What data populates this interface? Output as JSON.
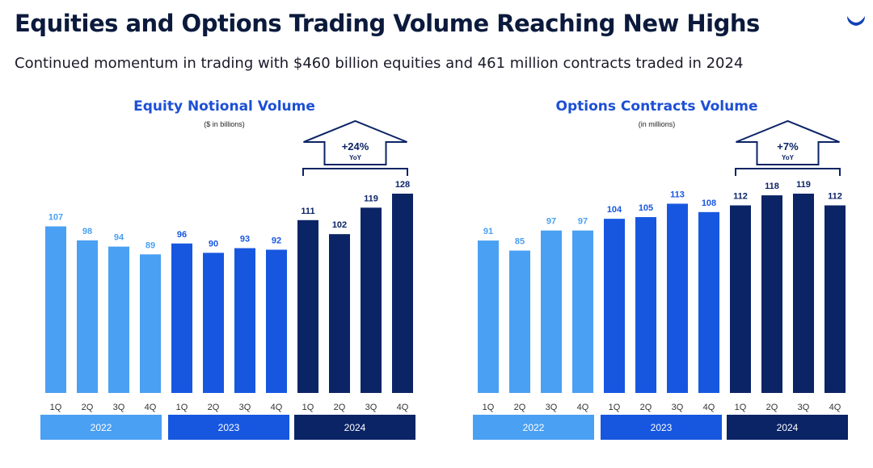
{
  "header": {
    "title": "Equities and Options Trading Volume Reaching New Highs",
    "subtitle": "Continued momentum in trading with $460 billion equities and 461 million contracts traded in 2024"
  },
  "colors": {
    "2022": "#4aa0f2",
    "2023": "#1757e0",
    "2024": "#0b2466",
    "title": "#1d4fd6"
  },
  "chart_data": [
    {
      "type": "bar",
      "title": "Equity Notional Volume",
      "unit_note": "($ in billions)",
      "categories": [
        "1Q",
        "2Q",
        "3Q",
        "4Q",
        "1Q",
        "2Q",
        "3Q",
        "4Q",
        "1Q",
        "2Q",
        "3Q",
        "4Q"
      ],
      "years": [
        "2022",
        "2023",
        "2024"
      ],
      "values": [
        107,
        98,
        94,
        89,
        96,
        90,
        93,
        92,
        111,
        102,
        119,
        128
      ],
      "callout": {
        "value": "+24%",
        "label": "YoY"
      }
    },
    {
      "type": "bar",
      "title": "Options Contracts Volume",
      "unit_note": "(in millions)",
      "categories": [
        "1Q",
        "2Q",
        "3Q",
        "4Q",
        "1Q",
        "2Q",
        "3Q",
        "4Q",
        "1Q",
        "2Q",
        "3Q",
        "4Q"
      ],
      "years": [
        "2022",
        "2023",
        "2024"
      ],
      "values": [
        91,
        85,
        97,
        97,
        104,
        105,
        113,
        108,
        112,
        118,
        119,
        112
      ],
      "callout": {
        "value": "+7%",
        "label": "YoY"
      }
    }
  ]
}
